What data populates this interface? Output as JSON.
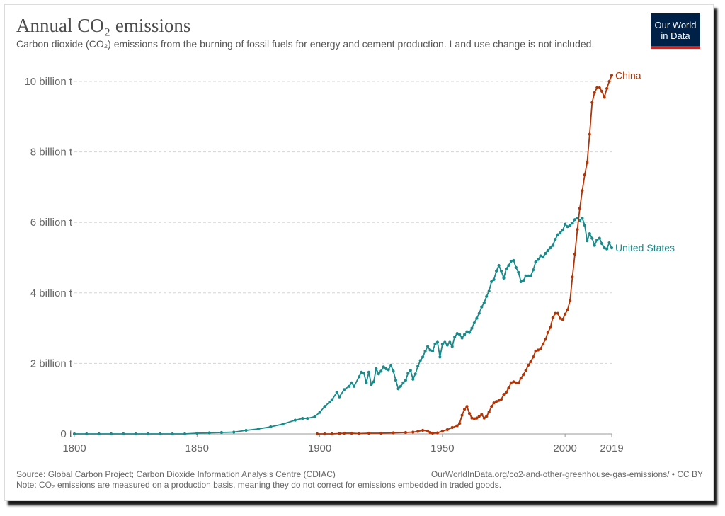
{
  "header": {
    "title": "Annual CO₂ emissions",
    "subtitle": "Carbon dioxide (CO₂) emissions from the burning of fossil fuels for energy and cement production. Land use change is not included."
  },
  "logo": {
    "text": "Our World in Data",
    "bg_color": "#002147",
    "bar_color": "#be2b2b"
  },
  "footer": {
    "source": "Source: Global Carbon Project; Carbon Dioxide Information Analysis Centre (CDIAC)",
    "url": "OurWorldInData.org/co2-and-other-greenhouse-gas-emissions/ • CC BY",
    "note": "Note: CO₂ emissions are measured on a production basis, meaning they do not correct for emissions embedded in traded goods."
  },
  "chart_data": {
    "type": "line",
    "title": "Annual CO₂ emissions",
    "xlabel": "",
    "ylabel": "",
    "xlim": [
      1800,
      2019
    ],
    "ylim": [
      0,
      10
    ],
    "y_unit": "billion t",
    "x_ticks": [
      1800,
      1850,
      1900,
      1950,
      2000,
      2019
    ],
    "y_ticks": [
      {
        "value": 0,
        "label": "0 t"
      },
      {
        "value": 2,
        "label": "2 billion t"
      },
      {
        "value": 4,
        "label": "4 billion t"
      },
      {
        "value": 6,
        "label": "6 billion t"
      },
      {
        "value": 8,
        "label": "8 billion t"
      },
      {
        "value": 10,
        "label": "10 billion t"
      }
    ],
    "grid": "horizontal-dashed",
    "legend": "end-of-line labels",
    "series": [
      {
        "name": "United States",
        "color": "#1a8a8a",
        "points": [
          [
            1800,
            0.0
          ],
          [
            1805,
            0.0
          ],
          [
            1810,
            0.0
          ],
          [
            1815,
            0.0
          ],
          [
            1820,
            0.0
          ],
          [
            1825,
            0.0
          ],
          [
            1830,
            0.0
          ],
          [
            1835,
            0.0
          ],
          [
            1840,
            0.0
          ],
          [
            1845,
            0.0
          ],
          [
            1850,
            0.02
          ],
          [
            1855,
            0.03
          ],
          [
            1860,
            0.04
          ],
          [
            1865,
            0.05
          ],
          [
            1870,
            0.1
          ],
          [
            1875,
            0.14
          ],
          [
            1880,
            0.2
          ],
          [
            1885,
            0.28
          ],
          [
            1890,
            0.39
          ],
          [
            1893,
            0.44
          ],
          [
            1895,
            0.44
          ],
          [
            1898,
            0.49
          ],
          [
            1900,
            0.61
          ],
          [
            1902,
            0.78
          ],
          [
            1904,
            0.9
          ],
          [
            1905,
            0.97
          ],
          [
            1907,
            1.18
          ],
          [
            1908,
            1.05
          ],
          [
            1910,
            1.26
          ],
          [
            1912,
            1.35
          ],
          [
            1913,
            1.45
          ],
          [
            1914,
            1.35
          ],
          [
            1916,
            1.62
          ],
          [
            1917,
            1.75
          ],
          [
            1918,
            1.72
          ],
          [
            1919,
            1.45
          ],
          [
            1920,
            1.75
          ],
          [
            1921,
            1.4
          ],
          [
            1922,
            1.48
          ],
          [
            1923,
            1.85
          ],
          [
            1924,
            1.7
          ],
          [
            1925,
            1.78
          ],
          [
            1926,
            1.9
          ],
          [
            1927,
            1.85
          ],
          [
            1928,
            1.82
          ],
          [
            1929,
            1.95
          ],
          [
            1930,
            1.78
          ],
          [
            1931,
            1.52
          ],
          [
            1932,
            1.28
          ],
          [
            1933,
            1.35
          ],
          [
            1934,
            1.45
          ],
          [
            1935,
            1.52
          ],
          [
            1936,
            1.72
          ],
          [
            1937,
            1.8
          ],
          [
            1938,
            1.55
          ],
          [
            1939,
            1.7
          ],
          [
            1940,
            1.92
          ],
          [
            1941,
            2.08
          ],
          [
            1942,
            2.18
          ],
          [
            1943,
            2.35
          ],
          [
            1944,
            2.48
          ],
          [
            1945,
            2.38
          ],
          [
            1946,
            2.35
          ],
          [
            1947,
            2.55
          ],
          [
            1948,
            2.6
          ],
          [
            1949,
            2.18
          ],
          [
            1950,
            2.55
          ],
          [
            1951,
            2.6
          ],
          [
            1952,
            2.52
          ],
          [
            1953,
            2.6
          ],
          [
            1954,
            2.48
          ],
          [
            1955,
            2.75
          ],
          [
            1956,
            2.85
          ],
          [
            1957,
            2.82
          ],
          [
            1958,
            2.72
          ],
          [
            1959,
            2.82
          ],
          [
            1960,
            2.9
          ],
          [
            1961,
            2.88
          ],
          [
            1962,
            3.0
          ],
          [
            1963,
            3.15
          ],
          [
            1964,
            3.28
          ],
          [
            1965,
            3.42
          ],
          [
            1966,
            3.6
          ],
          [
            1967,
            3.72
          ],
          [
            1968,
            3.9
          ],
          [
            1969,
            4.05
          ],
          [
            1970,
            4.32
          ],
          [
            1971,
            4.38
          ],
          [
            1972,
            4.62
          ],
          [
            1973,
            4.78
          ],
          [
            1974,
            4.62
          ],
          [
            1975,
            4.42
          ],
          [
            1976,
            4.68
          ],
          [
            1977,
            4.78
          ],
          [
            1978,
            4.9
          ],
          [
            1979,
            4.92
          ],
          [
            1980,
            4.72
          ],
          [
            1981,
            4.58
          ],
          [
            1982,
            4.32
          ],
          [
            1983,
            4.35
          ],
          [
            1984,
            4.48
          ],
          [
            1985,
            4.48
          ],
          [
            1986,
            4.48
          ],
          [
            1987,
            4.65
          ],
          [
            1988,
            4.88
          ],
          [
            1989,
            4.95
          ],
          [
            1990,
            5.05
          ],
          [
            1991,
            5.02
          ],
          [
            1992,
            5.12
          ],
          [
            1993,
            5.2
          ],
          [
            1994,
            5.28
          ],
          [
            1995,
            5.35
          ],
          [
            1996,
            5.52
          ],
          [
            1997,
            5.65
          ],
          [
            1998,
            5.7
          ],
          [
            1999,
            5.78
          ],
          [
            2000,
            5.95
          ],
          [
            2001,
            5.88
          ],
          [
            2002,
            5.92
          ],
          [
            2003,
            5.98
          ],
          [
            2004,
            6.08
          ],
          [
            2005,
            6.12
          ],
          [
            2006,
            6.05
          ],
          [
            2007,
            6.12
          ],
          [
            2008,
            5.92
          ],
          [
            2009,
            5.48
          ],
          [
            2010,
            5.68
          ],
          [
            2011,
            5.55
          ],
          [
            2012,
            5.35
          ],
          [
            2013,
            5.5
          ],
          [
            2014,
            5.55
          ],
          [
            2015,
            5.4
          ],
          [
            2016,
            5.28
          ],
          [
            2017,
            5.25
          ],
          [
            2018,
            5.42
          ],
          [
            2019,
            5.28
          ]
        ]
      },
      {
        "name": "China",
        "color": "#b13507",
        "points": [
          [
            1899,
            0.0
          ],
          [
            1902,
            0.0
          ],
          [
            1905,
            0.0
          ],
          [
            1908,
            0.01
          ],
          [
            1910,
            0.02
          ],
          [
            1913,
            0.02
          ],
          [
            1916,
            0.01
          ],
          [
            1920,
            0.02
          ],
          [
            1925,
            0.02
          ],
          [
            1930,
            0.03
          ],
          [
            1935,
            0.04
          ],
          [
            1938,
            0.05
          ],
          [
            1940,
            0.07
          ],
          [
            1942,
            0.1
          ],
          [
            1944,
            0.08
          ],
          [
            1945,
            0.04
          ],
          [
            1946,
            0.02
          ],
          [
            1948,
            0.03
          ],
          [
            1950,
            0.08
          ],
          [
            1952,
            0.12
          ],
          [
            1954,
            0.18
          ],
          [
            1956,
            0.23
          ],
          [
            1957,
            0.3
          ],
          [
            1958,
            0.53
          ],
          [
            1959,
            0.7
          ],
          [
            1960,
            0.78
          ],
          [
            1961,
            0.58
          ],
          [
            1962,
            0.45
          ],
          [
            1963,
            0.43
          ],
          [
            1964,
            0.45
          ],
          [
            1965,
            0.5
          ],
          [
            1966,
            0.55
          ],
          [
            1967,
            0.45
          ],
          [
            1968,
            0.5
          ],
          [
            1969,
            0.62
          ],
          [
            1970,
            0.78
          ],
          [
            1971,
            0.88
          ],
          [
            1972,
            0.92
          ],
          [
            1973,
            0.95
          ],
          [
            1974,
            0.98
          ],
          [
            1975,
            1.12
          ],
          [
            1976,
            1.18
          ],
          [
            1977,
            1.3
          ],
          [
            1978,
            1.45
          ],
          [
            1979,
            1.48
          ],
          [
            1980,
            1.45
          ],
          [
            1981,
            1.45
          ],
          [
            1982,
            1.58
          ],
          [
            1983,
            1.68
          ],
          [
            1984,
            1.8
          ],
          [
            1985,
            1.95
          ],
          [
            1986,
            2.05
          ],
          [
            1987,
            2.18
          ],
          [
            1988,
            2.35
          ],
          [
            1989,
            2.38
          ],
          [
            1990,
            2.42
          ],
          [
            1991,
            2.55
          ],
          [
            1992,
            2.68
          ],
          [
            1993,
            2.88
          ],
          [
            1994,
            3.02
          ],
          [
            1995,
            3.3
          ],
          [
            1996,
            3.42
          ],
          [
            1997,
            3.42
          ],
          [
            1998,
            3.28
          ],
          [
            1999,
            3.25
          ],
          [
            2000,
            3.4
          ],
          [
            2001,
            3.52
          ],
          [
            2002,
            3.78
          ],
          [
            2003,
            4.45
          ],
          [
            2004,
            5.1
          ],
          [
            2005,
            5.8
          ],
          [
            2006,
            6.4
          ],
          [
            2007,
            6.9
          ],
          [
            2008,
            7.35
          ],
          [
            2009,
            7.7
          ],
          [
            2010,
            8.5
          ],
          [
            2011,
            9.4
          ],
          [
            2012,
            9.68
          ],
          [
            2013,
            9.82
          ],
          [
            2014,
            9.82
          ],
          [
            2015,
            9.72
          ],
          [
            2016,
            9.55
          ],
          [
            2017,
            9.8
          ],
          [
            2018,
            10.0
          ],
          [
            2019,
            10.17
          ]
        ]
      }
    ]
  }
}
